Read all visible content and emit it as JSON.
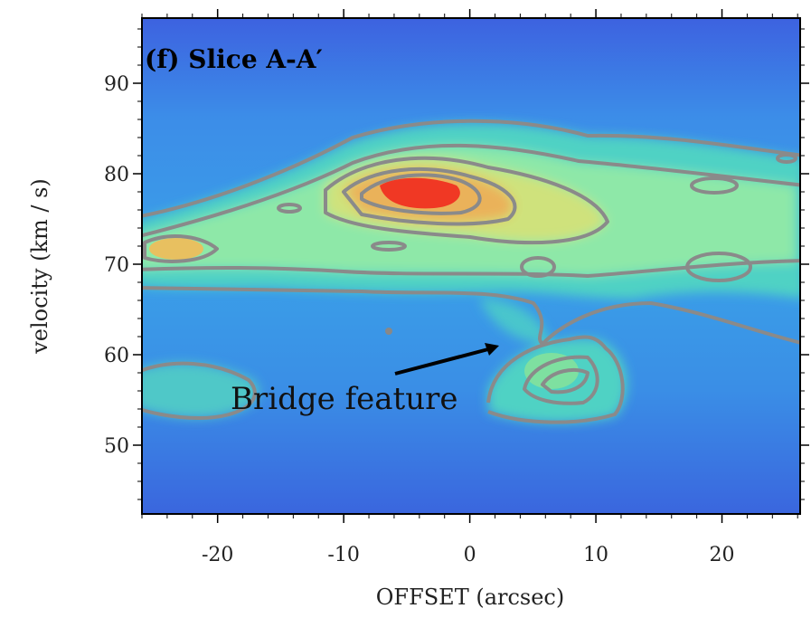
{
  "chart_data": {
    "type": "heatmap",
    "title": "(f) Slice A-A′",
    "xlabel": "OFFSET (arcsec)",
    "ylabel": "velocity (km / s)",
    "annotation": "Bridge feature",
    "xlim": [
      -26,
      26.2
    ],
    "ylim": [
      42.4,
      97.2
    ],
    "xticks": [
      -20,
      -10,
      0,
      10,
      20
    ],
    "yticks": [
      50,
      60,
      70,
      80,
      90
    ]
  }
}
